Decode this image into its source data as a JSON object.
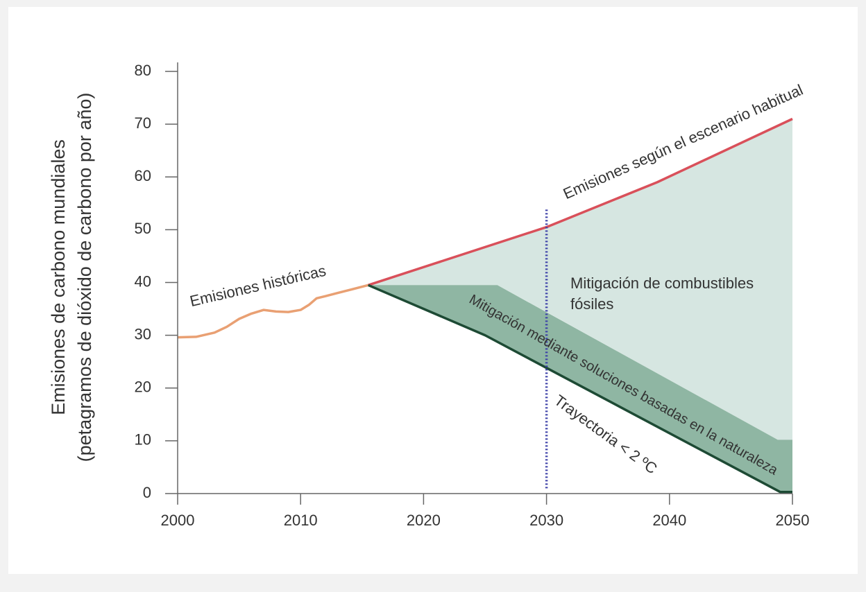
{
  "chart_data": {
    "type": "line",
    "ylabel": [
      "Emisiones de carbono mundiales",
      "(petagramos de dióxido de carbono por año)"
    ],
    "xlim": [
      2000,
      2050
    ],
    "ylim": [
      0,
      80
    ],
    "xticks": [
      2000,
      2010,
      2020,
      2030,
      2040,
      2050
    ],
    "yticks": [
      0,
      10,
      20,
      30,
      40,
      50,
      60,
      70,
      80
    ],
    "series": [
      {
        "name": "Mitigación de combustibles fósiles",
        "kind": "area",
        "color": "#d6e6e1",
        "x": [
          2015.5,
          2026,
          2030,
          2039,
          2048.8,
          2050
        ],
        "values": [
          39.5,
          47.5,
          50.5,
          59,
          69.7,
          71
        ],
        "lower": [
          39.5,
          39.5,
          34.4,
          22.8,
          10.2,
          10.2
        ]
      },
      {
        "name": "Mitigación mediante soluciones basadas en la naturaleza",
        "kind": "area",
        "color": "#8fb6a3",
        "x": [
          2015.5,
          2025,
          2026,
          2048.8,
          2049,
          2050
        ],
        "values": [
          39.5,
          39.5,
          39.5,
          10.2,
          10.2,
          10.2
        ],
        "lower": [
          39.5,
          30,
          28.9,
          0.5,
          0.3,
          0.3
        ]
      },
      {
        "name": "Emisiones históricas",
        "kind": "line",
        "color": "#e9a073",
        "x": [
          2000,
          2001.5,
          2003,
          2004,
          2005,
          2006,
          2007,
          2008,
          2009,
          2010,
          2010.7,
          2011.3,
          2012,
          2013,
          2014,
          2015.5
        ],
        "values": [
          29.6,
          29.7,
          30.5,
          31.6,
          33.1,
          34.1,
          34.8,
          34.5,
          34.4,
          34.8,
          35.8,
          37,
          37.4,
          38,
          38.6,
          39.5
        ]
      },
      {
        "name": "Emisiones según el escenario habitual",
        "kind": "line",
        "color": "#d9505a",
        "x": [
          2015.5,
          2030,
          2039,
          2050
        ],
        "values": [
          39.5,
          50.5,
          59,
          71
        ]
      },
      {
        "name": "Trayectoria < 2 ºC",
        "kind": "line",
        "color": "#1d4a34",
        "x": [
          2015.5,
          2025,
          2049,
          2050
        ],
        "values": [
          39.5,
          30,
          0.3,
          0.3
        ]
      }
    ],
    "vline": {
      "x": 2030,
      "y": [
        1,
        54
      ],
      "color": "#3b3fa8"
    }
  }
}
